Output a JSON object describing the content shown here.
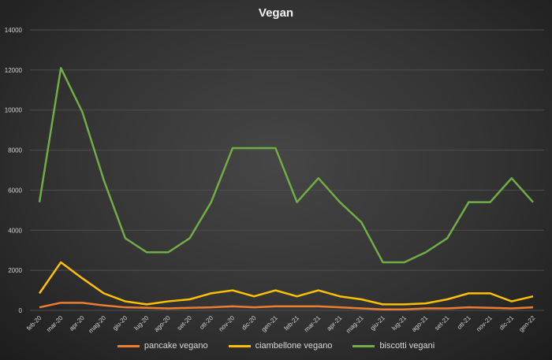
{
  "chart_data": {
    "type": "line",
    "title": "Vegan",
    "xlabel": "",
    "ylabel": "",
    "ylim": [
      0,
      14000
    ],
    "yticks": [
      "0",
      "2000",
      "4000",
      "6000",
      "8000",
      "10000",
      "12000",
      "14000"
    ],
    "grid": true,
    "legend_position": "bottom",
    "categories": [
      "feb-20",
      "mar-20",
      "apr-20",
      "mag-20",
      "giu-20",
      "lug-20",
      "ago-20",
      "set-20",
      "ott-20",
      "nov-20",
      "dic-20",
      "gen-21",
      "feb-21",
      "mar-21",
      "apr-21",
      "mag-21",
      "giu-21",
      "lug-21",
      "ago-21",
      "set-21",
      "ott-21",
      "nov-21",
      "dic-21",
      "gen-22"
    ],
    "series": [
      {
        "name": "pancake vegano",
        "color": "#ed7d31",
        "values": [
          150,
          380,
          380,
          250,
          150,
          130,
          100,
          130,
          150,
          200,
          150,
          200,
          200,
          200,
          150,
          100,
          50,
          50,
          100,
          100,
          150,
          130,
          100,
          150
        ]
      },
      {
        "name": "ciambellone vegano",
        "color": "#ffc000",
        "values": [
          850,
          2400,
          1600,
          850,
          450,
          300,
          450,
          550,
          850,
          1000,
          700,
          1000,
          700,
          1000,
          700,
          550,
          300,
          300,
          350,
          550,
          850,
          850,
          450,
          700
        ]
      },
      {
        "name": "biscotti vegani",
        "color": "#70ad47",
        "values": [
          5400,
          12100,
          9900,
          6500,
          3600,
          2900,
          2900,
          3600,
          5400,
          8100,
          8100,
          8100,
          5400,
          6600,
          5400,
          4400,
          2400,
          2400,
          2900,
          3600,
          5400,
          5400,
          6600,
          5400
        ]
      }
    ]
  }
}
